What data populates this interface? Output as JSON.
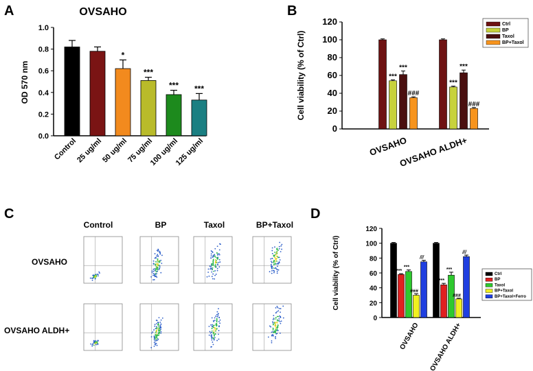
{
  "colors": {
    "black": "#000000",
    "darkred": "#7a1414",
    "orange": "#f28a1e",
    "olive": "#b9bb2a",
    "green": "#1d8a1d",
    "teal": "#1b7f82",
    "maroon": "#6e1212",
    "lime": "#c7d23c",
    "taxol_b": "#4a0f0f",
    "orange_b": "#f7941d",
    "red_d": "#e02020",
    "green_d": "#2ec92e",
    "yellow_d": "#f0f020",
    "blue_d": "#1f3fe0"
  },
  "chart_data": [
    {
      "panel": "A",
      "type": "bar",
      "title": "OVSAHO",
      "ylabel": "OD 570 nm",
      "ylim": [
        0,
        1.0
      ],
      "yticks": [
        "0.0",
        "0.2",
        "0.4",
        "0.6",
        "0.8",
        "1.0"
      ],
      "categories": [
        "Control",
        "25 ug/ml",
        "50 ug/ml",
        "75 ug/ml",
        "100 ug/ml",
        "125 ug/ml"
      ],
      "values": [
        0.82,
        0.78,
        0.62,
        0.51,
        0.38,
        0.33
      ],
      "errors": [
        0.06,
        0.04,
        0.08,
        0.03,
        0.04,
        0.06
      ],
      "significance": [
        "",
        "",
        "*",
        "***",
        "***",
        "***"
      ]
    },
    {
      "panel": "B",
      "type": "bar",
      "ylabel": "Cell viability (% of Ctrl)",
      "ylim": [
        0,
        120
      ],
      "yticks": [
        "0",
        "20",
        "40",
        "60",
        "80",
        "100",
        "120"
      ],
      "groups": [
        "OVSAHO",
        "OVSAHO ALDH+"
      ],
      "legend": [
        "Ctrl",
        "BP",
        "Taxol",
        "BP+Taxol"
      ],
      "series": [
        {
          "name": "Ctrl",
          "values": [
            100,
            100
          ],
          "errors": [
            1,
            1
          ],
          "labels": [
            "",
            ""
          ]
        },
        {
          "name": "BP",
          "values": [
            54,
            47
          ],
          "errors": [
            1,
            1
          ],
          "labels": [
            "***",
            "***"
          ]
        },
        {
          "name": "Taxol",
          "values": [
            61,
            63
          ],
          "errors": [
            4,
            3
          ],
          "labels": [
            "***",
            "***"
          ]
        },
        {
          "name": "BP+Taxol",
          "values": [
            35,
            23
          ],
          "errors": [
            1,
            1
          ],
          "labels": [
            "###",
            "###"
          ]
        }
      ]
    },
    {
      "panel": "D",
      "type": "bar",
      "ylabel": "Cell viability (% of Ctrl)",
      "ylim": [
        0,
        120
      ],
      "yticks": [
        "0",
        "20",
        "40",
        "60",
        "80",
        "100",
        "120"
      ],
      "groups": [
        "OVSAHO",
        "OVSAHO ALDH+"
      ],
      "legend": [
        "Ctrl",
        "BP",
        "Taxol",
        "BP+Taxol",
        "BP+Taxol+Ferro"
      ],
      "series": [
        {
          "name": "Ctrl",
          "values": [
            100,
            100
          ],
          "errors": [
            1,
            1
          ],
          "labels": [
            "",
            ""
          ]
        },
        {
          "name": "BP",
          "values": [
            58,
            44
          ],
          "errors": [
            1,
            2
          ],
          "labels": [
            "***",
            "***"
          ]
        },
        {
          "name": "Taxol",
          "values": [
            62,
            57
          ],
          "errors": [
            2,
            4
          ],
          "labels": [
            "***",
            "***"
          ]
        },
        {
          "name": "BP+Taxol",
          "values": [
            30,
            25
          ],
          "errors": [
            2,
            1
          ],
          "labels": [
            "###",
            "###"
          ]
        },
        {
          "name": "BP+Taxol+Ferro",
          "values": [
            75,
            82
          ],
          "errors": [
            2,
            2
          ],
          "labels": [
            "///",
            "///"
          ]
        }
      ]
    }
  ],
  "panel_labels": {
    "a": "A",
    "b": "B",
    "c": "C",
    "d": "D"
  },
  "flow": {
    "columns": [
      "Control",
      "BP",
      "Taxol",
      "BP+Taxol"
    ],
    "rows": [
      "OVSAHO",
      "OVSAHO ALDH+"
    ]
  }
}
